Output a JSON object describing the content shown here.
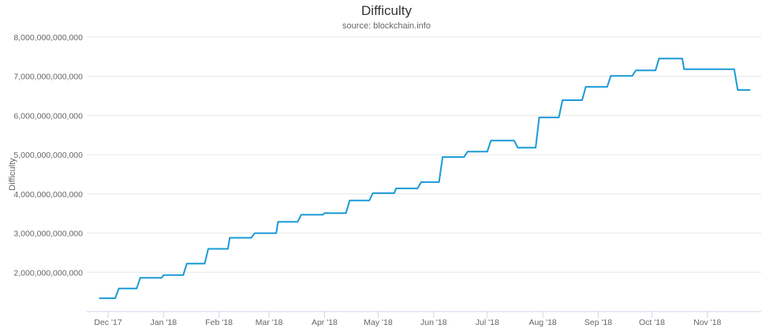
{
  "chart_data": {
    "type": "line",
    "title": "Difficulty",
    "subtitle": "source: blockchain.info",
    "xlabel": "",
    "ylabel": "Difficulty",
    "ylim": [
      1000000000000,
      8000000000000
    ],
    "grid": true,
    "legend": "none",
    "line_color": "#1a9ad6",
    "y_ticks": [
      {
        "value": 2000000000000,
        "label": "2,000,000,000,000"
      },
      {
        "value": 3000000000000,
        "label": "3,000,000,000,000"
      },
      {
        "value": 4000000000000,
        "label": "4,000,000,000,000"
      },
      {
        "value": 5000000000000,
        "label": "5,000,000,000,000"
      },
      {
        "value": 6000000000000,
        "label": "6,000,000,000,000"
      },
      {
        "value": 7000000000000,
        "label": "7,000,000,000,000"
      },
      {
        "value": 8000000000000,
        "label": "8,000,000,000,000"
      }
    ],
    "x_ticks": [
      {
        "date": "2017-12-01",
        "label": "Dec '17"
      },
      {
        "date": "2018-01-01",
        "label": "Jan '18"
      },
      {
        "date": "2018-02-01",
        "label": "Feb '18"
      },
      {
        "date": "2018-03-01",
        "label": "Mar '18"
      },
      {
        "date": "2018-04-01",
        "label": "Apr '18"
      },
      {
        "date": "2018-05-01",
        "label": "May '18"
      },
      {
        "date": "2018-06-01",
        "label": "Jun '18"
      },
      {
        "date": "2018-07-01",
        "label": "Jul '18"
      },
      {
        "date": "2018-08-01",
        "label": "Aug '18"
      },
      {
        "date": "2018-09-01",
        "label": "Sep '18"
      },
      {
        "date": "2018-10-01",
        "label": "Oct '18"
      },
      {
        "date": "2018-11-01",
        "label": "Nov '18"
      }
    ],
    "steps": [
      {
        "from": "2017-11-26",
        "to": "2017-12-05",
        "value": 1340000000000
      },
      {
        "from": "2017-12-07",
        "to": "2017-12-17",
        "value": 1590000000000
      },
      {
        "from": "2017-12-19",
        "to": "2017-12-31",
        "value": 1860000000000
      },
      {
        "from": "2018-01-01",
        "to": "2018-01-12",
        "value": 1930000000000
      },
      {
        "from": "2018-01-14",
        "to": "2018-01-24",
        "value": 2220000000000
      },
      {
        "from": "2018-01-26",
        "to": "2018-02-06",
        "value": 2600000000000
      },
      {
        "from": "2018-02-07",
        "to": "2018-02-19",
        "value": 2880000000000
      },
      {
        "from": "2018-02-21",
        "to": "2018-03-05",
        "value": 3000000000000
      },
      {
        "from": "2018-03-06",
        "to": "2018-03-17",
        "value": 3290000000000
      },
      {
        "from": "2018-03-19",
        "to": "2018-03-31",
        "value": 3470000000000
      },
      {
        "from": "2018-04-01",
        "to": "2018-04-13",
        "value": 3510000000000
      },
      {
        "from": "2018-04-15",
        "to": "2018-04-26",
        "value": 3830000000000
      },
      {
        "from": "2018-04-28",
        "to": "2018-05-10",
        "value": 4020000000000
      },
      {
        "from": "2018-05-11",
        "to": "2018-05-23",
        "value": 4140000000000
      },
      {
        "from": "2018-05-25",
        "to": "2018-06-04",
        "value": 4300000000000
      },
      {
        "from": "2018-06-06",
        "to": "2018-06-18",
        "value": 4940000000000
      },
      {
        "from": "2018-06-20",
        "to": "2018-07-01",
        "value": 5080000000000
      },
      {
        "from": "2018-07-03",
        "to": "2018-07-16",
        "value": 5360000000000
      },
      {
        "from": "2018-07-18",
        "to": "2018-07-28",
        "value": 5180000000000
      },
      {
        "from": "2018-07-30",
        "to": "2018-08-10",
        "value": 5950000000000
      },
      {
        "from": "2018-08-12",
        "to": "2018-08-23",
        "value": 6390000000000
      },
      {
        "from": "2018-08-25",
        "to": "2018-09-06",
        "value": 6730000000000
      },
      {
        "from": "2018-09-08",
        "to": "2018-09-20",
        "value": 7010000000000
      },
      {
        "from": "2018-09-22",
        "to": "2018-10-03",
        "value": 7150000000000
      },
      {
        "from": "2018-10-05",
        "to": "2018-10-18",
        "value": 7450000000000
      },
      {
        "from": "2018-10-19",
        "to": "2018-11-16",
        "value": 7180000000000
      },
      {
        "from": "2018-11-18",
        "to": "2018-11-25",
        "value": 6650000000000
      }
    ]
  }
}
